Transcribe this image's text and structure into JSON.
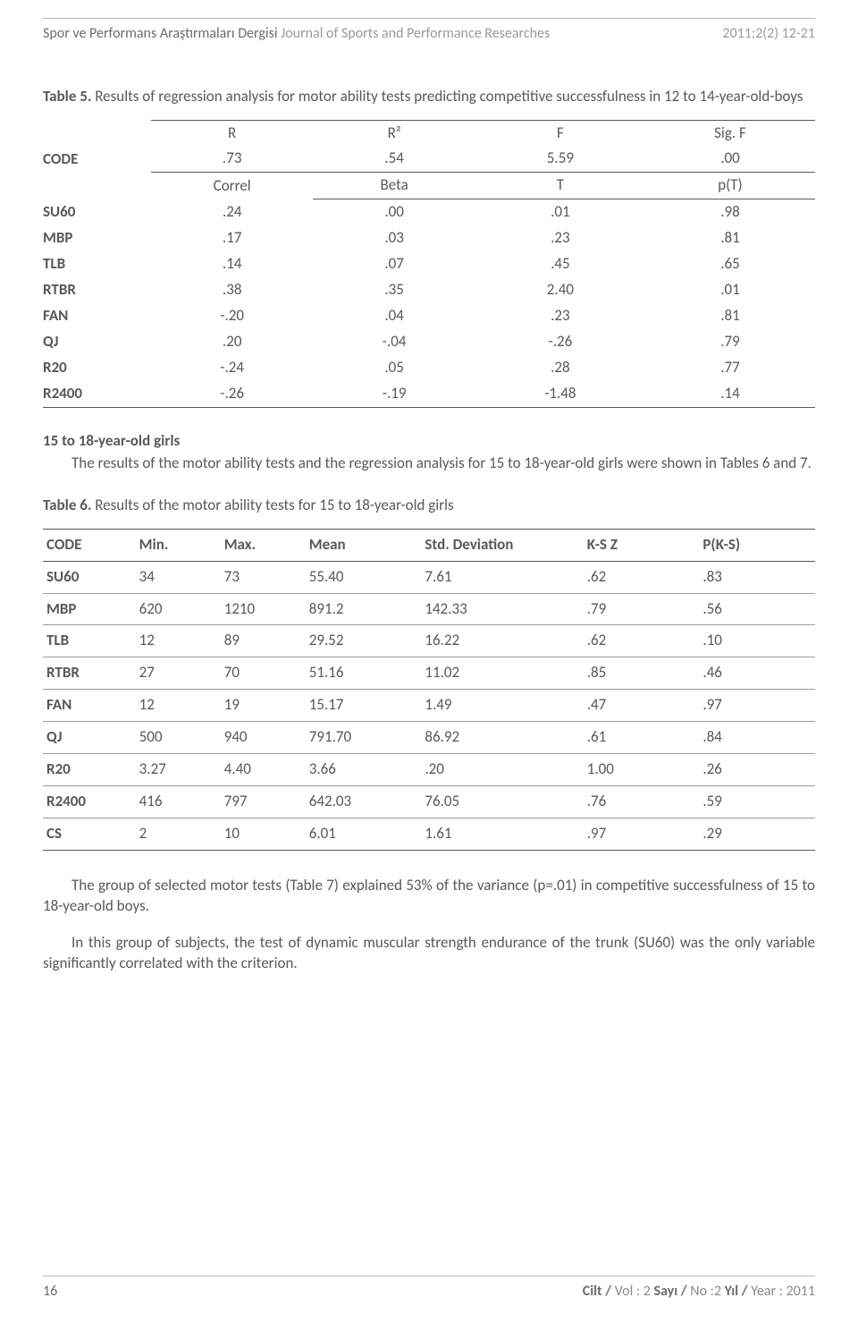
{
  "header": {
    "journal_tr": "Spor ve Performans Araştırmaları Dergisi",
    "journal_en": "Journal of Sports and Performance Researches",
    "issue": "2011;2(2) 12-21"
  },
  "table5": {
    "caption_label": "Table 5.",
    "caption_text": " Results of regression analysis for motor ability tests predicting competitive successfulness in 12 to 14-year-old-boys",
    "code_label": "CODE",
    "head1": [
      "R",
      "R²",
      "F",
      "Sig. F"
    ],
    "head1_vals": [
      ".73",
      ".54",
      "5.59",
      ".00"
    ],
    "head2": [
      "Correl",
      "Beta",
      "T",
      "p(T)"
    ],
    "rows": [
      {
        "lab": "SU60",
        "v": [
          ".24",
          ".00",
          ".01",
          ".98"
        ]
      },
      {
        "lab": "MBP",
        "v": [
          ".17",
          ".03",
          ".23",
          ".81"
        ]
      },
      {
        "lab": "TLB",
        "v": [
          ".14",
          ".07",
          ".45",
          ".65"
        ]
      },
      {
        "lab": "RTBR",
        "v": [
          ".38",
          ".35",
          "2.40",
          ".01"
        ]
      },
      {
        "lab": "FAN",
        "v": [
          "-.20",
          ".04",
          ".23",
          ".81"
        ]
      },
      {
        "lab": "QJ",
        "v": [
          ".20",
          "-.04",
          "-.26",
          ".79"
        ]
      },
      {
        "lab": "R20",
        "v": [
          "-.24",
          ".05",
          ".28",
          ".77"
        ]
      },
      {
        "lab": "R2400",
        "v": [
          "-.26",
          "-.19",
          "-1.48",
          ".14"
        ]
      }
    ]
  },
  "section": {
    "heading": "15 to 18-year-old girls",
    "para": "The results of the motor ability tests and the regression analysis for 15 to 18-year-old girls were shown in Tables 6 and 7."
  },
  "table6": {
    "caption_label": "Table 6.",
    "caption_text": " Results of the motor ability tests for 15 to 18-year-old girls",
    "cols": [
      "CODE",
      "Min.",
      "Max.",
      "Mean",
      "Std. Deviation",
      "K-S Z",
      "P(K-S)"
    ],
    "rows": [
      {
        "lab": "SU60",
        "v": [
          "34",
          "73",
          "55.40",
          "7.61",
          ".62",
          ".83"
        ]
      },
      {
        "lab": "MBP",
        "v": [
          "620",
          "1210",
          "891.2",
          "142.33",
          ".79",
          ".56"
        ]
      },
      {
        "lab": "TLB",
        "v": [
          "12",
          "89",
          "29.52",
          "16.22",
          ".62",
          ".10"
        ]
      },
      {
        "lab": "RTBR",
        "v": [
          "27",
          "70",
          "51.16",
          "11.02",
          ".85",
          ".46"
        ]
      },
      {
        "lab": "FAN",
        "v": [
          "12",
          "19",
          "15.17",
          "1.49",
          ".47",
          ".97"
        ]
      },
      {
        "lab": "QJ",
        "v": [
          "500",
          "940",
          "791.70",
          "86.92",
          ".61",
          ".84"
        ]
      },
      {
        "lab": "R20",
        "v": [
          "3.27",
          "4.40",
          "3.66",
          ".20",
          "1.00",
          ".26"
        ]
      },
      {
        "lab": "R2400",
        "v": [
          "416",
          "797",
          "642.03",
          "76.05",
          ".76",
          ".59"
        ]
      },
      {
        "lab": "CS",
        "v": [
          "2",
          "10",
          "6.01",
          "1.61",
          ".97",
          ".29"
        ]
      }
    ]
  },
  "body": {
    "p1": "The group of selected motor tests (Table 7) explained 53% of the variance (p=.01) in competitive successfulness of 15 to 18-year-old boys.",
    "p2": "In this group of subjects, the test of dynamic muscular strength endurance of the trunk (SU60) was the only variable significantly correlated with the criterion."
  },
  "footer": {
    "page": "16",
    "cilt_lab": "Cilt /",
    "vol_lab": "Vol",
    "vol_sep": " : 2  ",
    "sayi_lab": "Sayı /",
    "no_lab": "No",
    "no_sep": " :2  ",
    "yil_lab": "Yıl /",
    "year_lab": "Year",
    "year_sep": " : 2011"
  }
}
